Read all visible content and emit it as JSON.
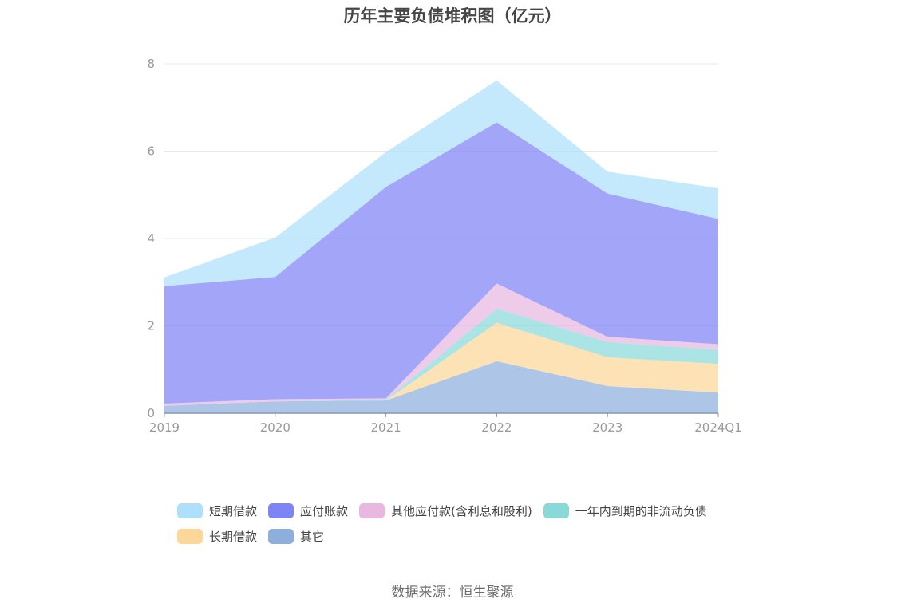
{
  "chart_data": {
    "type": "area",
    "stacked": true,
    "title": "历年主要负债堆积图（亿元）",
    "x": [
      "2019",
      "2020",
      "2021",
      "2022",
      "2023",
      "2024Q1"
    ],
    "ylim": [
      0,
      8
    ],
    "yticks": [
      "0",
      "2",
      "4",
      "6",
      "8"
    ],
    "grid": true,
    "legend_position": "bottom",
    "series": [
      {
        "name": "其它",
        "color": "#8eaedc",
        "values": [
          0.17,
          0.27,
          0.29,
          1.19,
          0.62,
          0.47
        ]
      },
      {
        "name": "长期借款",
        "color": "#fcd79a",
        "values": [
          0.0,
          0.0,
          0.0,
          0.88,
          0.66,
          0.66
        ]
      },
      {
        "name": "一年内到期的非流动负债",
        "color": "#8ad9d9",
        "values": [
          0.0,
          0.0,
          0.02,
          0.32,
          0.35,
          0.32
        ]
      },
      {
        "name": "其他应付款(含利息和股利)",
        "color": "#e8b8e0",
        "values": [
          0.05,
          0.05,
          0.03,
          0.58,
          0.12,
          0.13
        ]
      },
      {
        "name": "应付账款",
        "color": "#7f84f5",
        "values": [
          2.69,
          2.8,
          4.84,
          3.69,
          3.28,
          2.87
        ]
      },
      {
        "name": "短期借款",
        "color": "#aee0fb",
        "values": [
          0.2,
          0.9,
          0.8,
          0.96,
          0.5,
          0.7
        ]
      }
    ]
  },
  "legend": {
    "order": [
      "短期借款",
      "应付账款",
      "其他应付款(含利息和股利)",
      "一年内到期的非流动负债",
      "长期借款",
      "其它"
    ]
  },
  "source": "数据来源：恒生聚源"
}
